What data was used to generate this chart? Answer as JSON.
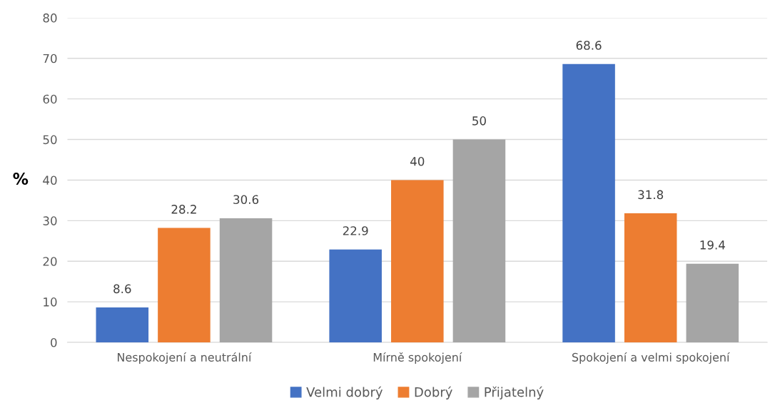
{
  "chart_data": {
    "type": "bar",
    "ylabel": "%",
    "categories": [
      "Nespokojení a neutrální",
      "Mírně spokojení",
      "Spokojení a velmi spokojení"
    ],
    "series": [
      {
        "name": "Velmi dobrý",
        "color": "#4472c4",
        "values": [
          8.6,
          22.9,
          68.6
        ]
      },
      {
        "name": "Dobrý",
        "color": "#ed7d31",
        "values": [
          28.2,
          40,
          31.8
        ]
      },
      {
        "name": "Přijatelný",
        "color": "#a5a5a5",
        "values": [
          30.6,
          50,
          19.4
        ]
      }
    ],
    "ylim": [
      0,
      80
    ],
    "yticks": [
      0,
      10,
      20,
      30,
      40,
      50,
      60,
      70,
      80
    ],
    "grid": "y",
    "legend": "bottom",
    "data_labels": true
  }
}
